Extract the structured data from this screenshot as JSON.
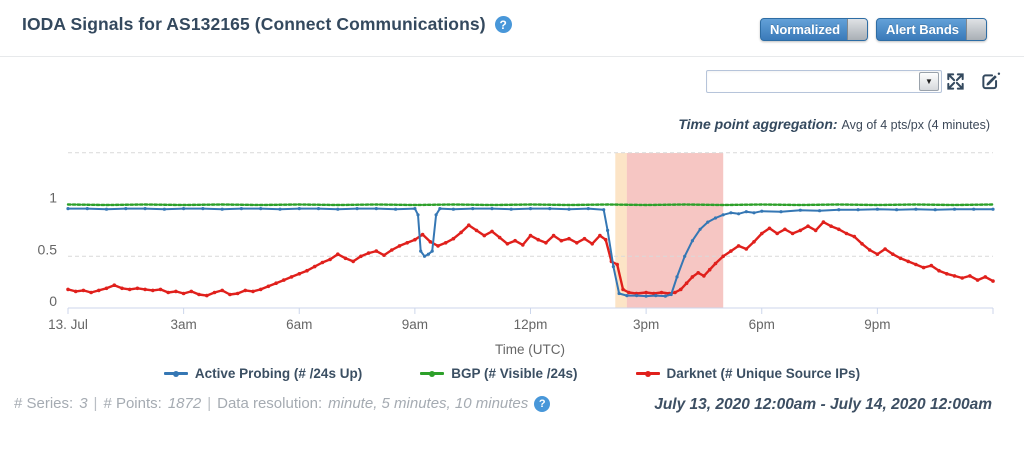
{
  "header": {
    "title": "IODA Signals for AS132165 (Connect Communications)",
    "toggles": [
      {
        "label": "Normalized",
        "state": "on"
      },
      {
        "label": "Alert Bands",
        "state": "on"
      }
    ]
  },
  "icons": {
    "help_glyph": "?",
    "dropdown_arrow": "▼"
  },
  "controls": {
    "dropdown_value": "",
    "aggregation_label": "Time point aggregation:",
    "aggregation_value": "Avg of 4 pts/px (4 minutes)"
  },
  "colors": {
    "accent_blue": "#4897d9",
    "title_text": "#34495e",
    "axis_line": "#ccd6eb",
    "gridline": "#d9d9d9",
    "axis_label": "#666666"
  },
  "chart_data": {
    "type": "line",
    "xlabel": "Time (UTC)",
    "xlim_hours": [
      0,
      24
    ],
    "ylim": [
      0,
      1.5
    ],
    "grid": "dashed-horizontal",
    "legend_position": "bottom",
    "x_ticks": [
      {
        "t": 0,
        "label": "13. Jul"
      },
      {
        "t": 3,
        "label": "3am"
      },
      {
        "t": 6,
        "label": "6am"
      },
      {
        "t": 9,
        "label": "9am"
      },
      {
        "t": 12,
        "label": "12pm"
      },
      {
        "t": 15,
        "label": "3pm"
      },
      {
        "t": 18,
        "label": "6pm"
      },
      {
        "t": 21,
        "label": "9pm"
      },
      {
        "t": 24,
        "label": ""
      }
    ],
    "y_ticks": [
      {
        "v": 0,
        "label": "0"
      },
      {
        "v": 0.5,
        "label": "0.5"
      },
      {
        "v": 1,
        "label": "1"
      }
    ],
    "gridline_values": [
      0.5,
      1,
      1.5
    ],
    "alert_bands": [
      {
        "from": 14.2,
        "to": 14.5,
        "color": "rgba(244,166,66,0.30)"
      },
      {
        "from": 14.5,
        "to": 17.0,
        "color": "rgba(224,67,57,0.30)"
      }
    ],
    "series": [
      {
        "name": "Active Probing (# /24s Up)",
        "color": "#3577b4",
        "points": [
          [
            0,
            0.96
          ],
          [
            0.5,
            0.96
          ],
          [
            1,
            0.955
          ],
          [
            1.5,
            0.96
          ],
          [
            2,
            0.96
          ],
          [
            2.5,
            0.955
          ],
          [
            3,
            0.96
          ],
          [
            3.5,
            0.96
          ],
          [
            4,
            0.955
          ],
          [
            4.5,
            0.96
          ],
          [
            5,
            0.96
          ],
          [
            5.5,
            0.955
          ],
          [
            6,
            0.96
          ],
          [
            6.5,
            0.96
          ],
          [
            7,
            0.955
          ],
          [
            7.5,
            0.96
          ],
          [
            8,
            0.96
          ],
          [
            8.5,
            0.955
          ],
          [
            9,
            0.96
          ],
          [
            9.08,
            0.9
          ],
          [
            9.15,
            0.55
          ],
          [
            9.25,
            0.5
          ],
          [
            9.35,
            0.52
          ],
          [
            9.45,
            0.55
          ],
          [
            9.55,
            0.9
          ],
          [
            9.65,
            0.96
          ],
          [
            10,
            0.955
          ],
          [
            10.5,
            0.96
          ],
          [
            11,
            0.96
          ],
          [
            11.5,
            0.955
          ],
          [
            12,
            0.96
          ],
          [
            12.5,
            0.96
          ],
          [
            13,
            0.955
          ],
          [
            13.5,
            0.96
          ],
          [
            13.9,
            0.95
          ],
          [
            14,
            0.75
          ],
          [
            14.15,
            0.4
          ],
          [
            14.3,
            0.14
          ],
          [
            14.5,
            0.12
          ],
          [
            14.75,
            0.12
          ],
          [
            15,
            0.115
          ],
          [
            15.25,
            0.12
          ],
          [
            15.5,
            0.115
          ],
          [
            15.65,
            0.13
          ],
          [
            15.8,
            0.3
          ],
          [
            16,
            0.5
          ],
          [
            16.2,
            0.65
          ],
          [
            16.4,
            0.76
          ],
          [
            16.6,
            0.83
          ],
          [
            16.8,
            0.87
          ],
          [
            17,
            0.9
          ],
          [
            17.2,
            0.92
          ],
          [
            17.4,
            0.91
          ],
          [
            17.6,
            0.93
          ],
          [
            17.8,
            0.92
          ],
          [
            18,
            0.935
          ],
          [
            18.5,
            0.93
          ],
          [
            19,
            0.945
          ],
          [
            19.5,
            0.94
          ],
          [
            20,
            0.95
          ],
          [
            20.5,
            0.95
          ],
          [
            21,
            0.955
          ],
          [
            21.5,
            0.95
          ],
          [
            22,
            0.955
          ],
          [
            22.5,
            0.95
          ],
          [
            23,
            0.955
          ],
          [
            23.5,
            0.955
          ],
          [
            24,
            0.955
          ]
        ]
      },
      {
        "name": "BGP (# Visible /24s)",
        "color": "#2da02a",
        "points": [
          [
            0,
            1
          ],
          [
            1,
            0.995
          ],
          [
            2,
            1
          ],
          [
            3,
            0.995
          ],
          [
            4,
            1
          ],
          [
            5,
            0.995
          ],
          [
            6,
            1
          ],
          [
            7,
            0.995
          ],
          [
            8,
            1
          ],
          [
            9,
            0.995
          ],
          [
            10,
            1
          ],
          [
            11,
            0.995
          ],
          [
            12,
            1
          ],
          [
            13,
            0.995
          ],
          [
            14,
            1
          ],
          [
            15,
            0.995
          ],
          [
            16,
            1
          ],
          [
            17,
            0.995
          ],
          [
            18,
            1
          ],
          [
            19,
            0.995
          ],
          [
            20,
            1
          ],
          [
            21,
            0.995
          ],
          [
            22,
            1
          ],
          [
            23,
            0.995
          ],
          [
            24,
            1
          ]
        ]
      },
      {
        "name": "Darknet (# Unique Source IPs)",
        "color": "#e0201c",
        "points": [
          [
            0,
            0.18
          ],
          [
            0.2,
            0.16
          ],
          [
            0.4,
            0.17
          ],
          [
            0.6,
            0.15
          ],
          [
            0.8,
            0.17
          ],
          [
            1,
            0.19
          ],
          [
            1.2,
            0.22
          ],
          [
            1.4,
            0.19
          ],
          [
            1.6,
            0.18
          ],
          [
            1.8,
            0.19
          ],
          [
            2,
            0.18
          ],
          [
            2.2,
            0.17
          ],
          [
            2.4,
            0.18
          ],
          [
            2.6,
            0.15
          ],
          [
            2.8,
            0.16
          ],
          [
            3,
            0.14
          ],
          [
            3.2,
            0.16
          ],
          [
            3.4,
            0.13
          ],
          [
            3.6,
            0.12
          ],
          [
            3.8,
            0.15
          ],
          [
            4,
            0.17
          ],
          [
            4.2,
            0.13
          ],
          [
            4.4,
            0.14
          ],
          [
            4.6,
            0.17
          ],
          [
            4.8,
            0.16
          ],
          [
            5,
            0.18
          ],
          [
            5.2,
            0.21
          ],
          [
            5.4,
            0.24
          ],
          [
            5.6,
            0.27
          ],
          [
            5.8,
            0.3
          ],
          [
            6,
            0.33
          ],
          [
            6.2,
            0.36
          ],
          [
            6.4,
            0.4
          ],
          [
            6.6,
            0.44
          ],
          [
            6.8,
            0.47
          ],
          [
            7,
            0.52
          ],
          [
            7.2,
            0.48
          ],
          [
            7.4,
            0.45
          ],
          [
            7.6,
            0.5
          ],
          [
            7.8,
            0.53
          ],
          [
            8,
            0.55
          ],
          [
            8.2,
            0.51
          ],
          [
            8.4,
            0.56
          ],
          [
            8.6,
            0.6
          ],
          [
            8.8,
            0.63
          ],
          [
            9,
            0.66
          ],
          [
            9.2,
            0.71
          ],
          [
            9.4,
            0.64
          ],
          [
            9.6,
            0.6
          ],
          [
            9.8,
            0.63
          ],
          [
            10,
            0.67
          ],
          [
            10.2,
            0.73
          ],
          [
            10.4,
            0.8
          ],
          [
            10.6,
            0.75
          ],
          [
            10.8,
            0.7
          ],
          [
            11,
            0.74
          ],
          [
            11.2,
            0.68
          ],
          [
            11.4,
            0.62
          ],
          [
            11.6,
            0.65
          ],
          [
            11.8,
            0.61
          ],
          [
            12,
            0.7
          ],
          [
            12.2,
            0.66
          ],
          [
            12.4,
            0.63
          ],
          [
            12.6,
            0.7
          ],
          [
            12.8,
            0.65
          ],
          [
            13,
            0.67
          ],
          [
            13.2,
            0.63
          ],
          [
            13.4,
            0.67
          ],
          [
            13.6,
            0.62
          ],
          [
            13.8,
            0.7
          ],
          [
            13.95,
            0.66
          ],
          [
            14.1,
            0.45
          ],
          [
            14.25,
            0.42
          ],
          [
            14.4,
            0.18
          ],
          [
            14.55,
            0.15
          ],
          [
            14.75,
            0.14
          ],
          [
            15,
            0.15
          ],
          [
            15.2,
            0.14
          ],
          [
            15.4,
            0.15
          ],
          [
            15.6,
            0.14
          ],
          [
            15.75,
            0.15
          ],
          [
            15.9,
            0.18
          ],
          [
            16.05,
            0.24
          ],
          [
            16.2,
            0.3
          ],
          [
            16.35,
            0.34
          ],
          [
            16.5,
            0.31
          ],
          [
            16.65,
            0.37
          ],
          [
            16.8,
            0.43
          ],
          [
            17,
            0.5
          ],
          [
            17.2,
            0.55
          ],
          [
            17.4,
            0.6
          ],
          [
            17.6,
            0.57
          ],
          [
            17.8,
            0.64
          ],
          [
            18,
            0.72
          ],
          [
            18.2,
            0.77
          ],
          [
            18.4,
            0.72
          ],
          [
            18.6,
            0.76
          ],
          [
            18.8,
            0.72
          ],
          [
            19,
            0.75
          ],
          [
            19.2,
            0.79
          ],
          [
            19.4,
            0.75
          ],
          [
            19.6,
            0.83
          ],
          [
            19.8,
            0.79
          ],
          [
            20,
            0.76
          ],
          [
            20.2,
            0.72
          ],
          [
            20.4,
            0.69
          ],
          [
            20.6,
            0.62
          ],
          [
            20.8,
            0.56
          ],
          [
            21,
            0.52
          ],
          [
            21.2,
            0.57
          ],
          [
            21.4,
            0.52
          ],
          [
            21.6,
            0.48
          ],
          [
            21.8,
            0.45
          ],
          [
            22,
            0.42
          ],
          [
            22.2,
            0.39
          ],
          [
            22.4,
            0.41
          ],
          [
            22.6,
            0.36
          ],
          [
            22.8,
            0.33
          ],
          [
            23,
            0.31
          ],
          [
            23.2,
            0.29
          ],
          [
            23.4,
            0.31
          ],
          [
            23.6,
            0.27
          ],
          [
            23.8,
            0.3
          ],
          [
            24,
            0.26
          ]
        ]
      }
    ]
  },
  "footer": {
    "stats": [
      {
        "label": "# Series:",
        "value": "3"
      },
      {
        "label": "# Points:",
        "value": "1872"
      },
      {
        "label": "Data resolution:",
        "value": "minute, 5 minutes, 10 minutes"
      }
    ],
    "separator": "|",
    "date_range": "July 13, 2020 12:00am - July 14, 2020 12:00am"
  }
}
